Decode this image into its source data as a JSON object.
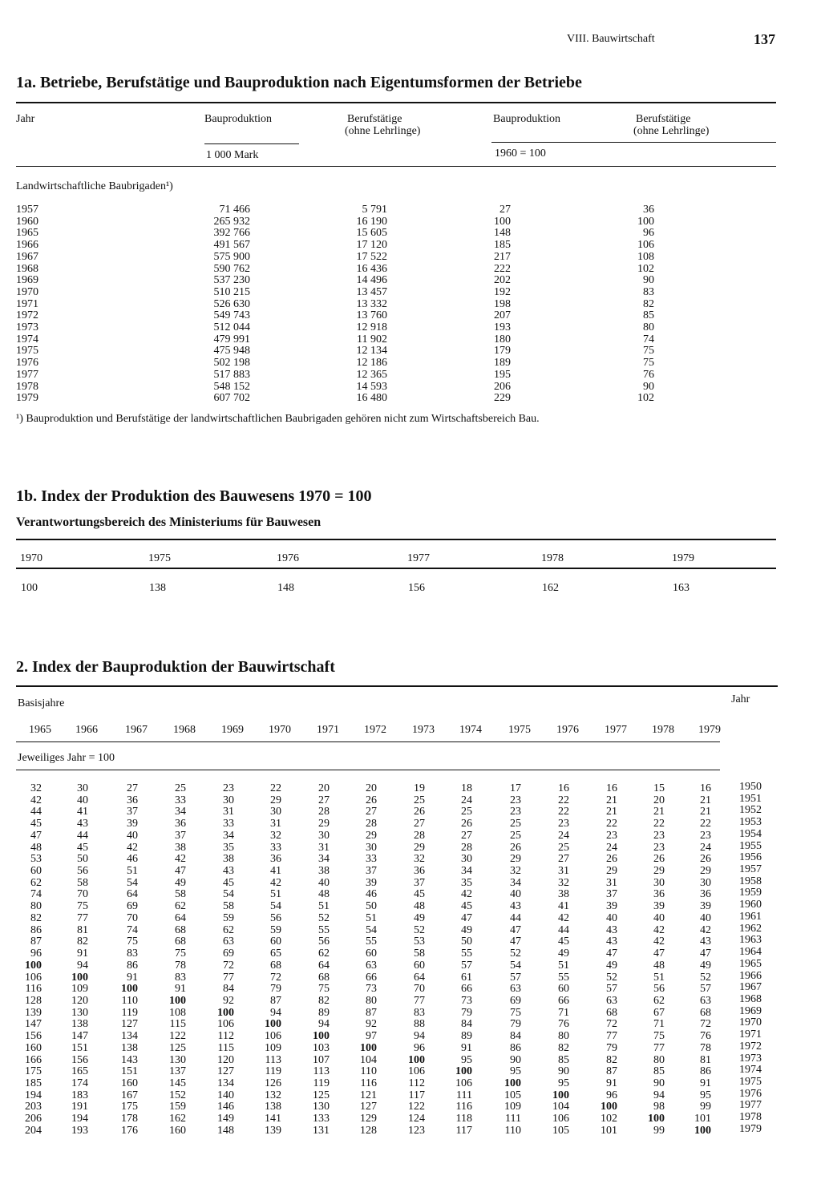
{
  "header": {
    "section": "VIII. Bauwirtschaft",
    "page": "137"
  },
  "table_1a": {
    "title": "1a. Betriebe, Berufstätige und Bauproduktion nach Eigentumsformen der Betriebe",
    "columns": [
      [
        "Jahr"
      ],
      [
        "Bauproduktion"
      ],
      [
        "Berufstätige",
        "(ohne Lehrlinge)"
      ],
      [
        "Bauproduktion"
      ],
      [
        "Berufstätige",
        "(ohne Lehrlinge)"
      ]
    ],
    "units": [
      "1 000 Mark",
      "1960 = 100"
    ],
    "group": "Landwirtschaftliche Baubrigaden¹)",
    "rows": [
      [
        "1957",
        "71 466",
        "5 791",
        "27",
        "36"
      ],
      [
        "1960",
        "265 932",
        "16 190",
        "100",
        "100"
      ],
      [
        "1965",
        "392 766",
        "15 605",
        "148",
        "96"
      ],
      [
        "1966",
        "491 567",
        "17 120",
        "185",
        "106"
      ],
      [
        "1967",
        "575 900",
        "17 522",
        "217",
        "108"
      ],
      [
        "1968",
        "590 762",
        "16 436",
        "222",
        "102"
      ],
      [
        "1969",
        "537 230",
        "14 496",
        "202",
        "90"
      ],
      [
        "1970",
        "510 215",
        "13 457",
        "192",
        "83"
      ],
      [
        "1971",
        "526 630",
        "13 332",
        "198",
        "82"
      ],
      [
        "1972",
        "549 743",
        "13 760",
        "207",
        "85"
      ],
      [
        "1973",
        "512 044",
        "12 918",
        "193",
        "80"
      ],
      [
        "1974",
        "479 991",
        "11 902",
        "180",
        "74"
      ],
      [
        "1975",
        "475 948",
        "12 134",
        "179",
        "75"
      ],
      [
        "1976",
        "502 198",
        "12 186",
        "189",
        "75"
      ],
      [
        "1977",
        "517 883",
        "12 365",
        "195",
        "76"
      ],
      [
        "1978",
        "548 152",
        "14 593",
        "206",
        "90"
      ],
      [
        "1979",
        "607 702",
        "16 480",
        "229",
        "102"
      ]
    ],
    "footnote": "¹) Bauproduktion und Berufstätige der landwirtschaftlichen Baubrigaden gehören nicht zum Wirtschaftsbereich Bau."
  },
  "table_1b": {
    "title": "1b. Index der Produktion des Bauwesens 1970 = 100",
    "subtitle": "Verantwortungsbereich des Ministeriums für Bauwesen",
    "years": [
      "1970",
      "1975",
      "1976",
      "1977",
      "1978",
      "1979"
    ],
    "values": [
      100,
      138,
      148,
      156,
      162,
      163
    ]
  },
  "table_2": {
    "title": "2. Index der Bauproduktion der Bauwirtschaft",
    "base_label": "Basisjahre",
    "year_label": "Jahr",
    "base_years": [
      "1965",
      "1966",
      "1967",
      "1968",
      "1969",
      "1970",
      "1971",
      "1972",
      "1973",
      "1974",
      "1975",
      "1976",
      "1977",
      "1978",
      "1979"
    ],
    "unit": "Jeweiliges Jahr = 100",
    "rows": [
      {
        "year": "1950",
        "values": [
          32,
          30,
          27,
          25,
          23,
          22,
          20,
          20,
          19,
          18,
          17,
          16,
          16,
          15,
          16
        ]
      },
      {
        "year": "1951",
        "values": [
          42,
          40,
          36,
          33,
          30,
          29,
          27,
          26,
          25,
          24,
          23,
          22,
          21,
          20,
          21
        ]
      },
      {
        "year": "1952",
        "values": [
          44,
          41,
          37,
          34,
          31,
          30,
          28,
          27,
          26,
          25,
          23,
          22,
          21,
          21,
          21
        ]
      },
      {
        "year": "1953",
        "values": [
          45,
          43,
          39,
          36,
          33,
          31,
          29,
          28,
          27,
          26,
          25,
          23,
          22,
          22,
          22
        ]
      },
      {
        "year": "1954",
        "values": [
          47,
          44,
          40,
          37,
          34,
          32,
          30,
          29,
          28,
          27,
          25,
          24,
          23,
          23,
          23
        ]
      },
      {
        "year": "1955",
        "values": [
          48,
          45,
          42,
          38,
          35,
          33,
          31,
          30,
          29,
          28,
          26,
          25,
          24,
          23,
          24
        ]
      },
      {
        "year": "1956",
        "values": [
          53,
          50,
          46,
          42,
          38,
          36,
          34,
          33,
          32,
          30,
          29,
          27,
          26,
          26,
          26
        ]
      },
      {
        "year": "1957",
        "values": [
          60,
          56,
          51,
          47,
          43,
          41,
          38,
          37,
          36,
          34,
          32,
          31,
          29,
          29,
          29
        ]
      },
      {
        "year": "1958",
        "values": [
          62,
          58,
          54,
          49,
          45,
          42,
          40,
          39,
          37,
          35,
          34,
          32,
          31,
          30,
          30
        ]
      },
      {
        "year": "1959",
        "values": [
          74,
          70,
          64,
          58,
          54,
          51,
          48,
          46,
          45,
          42,
          40,
          38,
          37,
          36,
          36
        ]
      },
      {
        "year": "1960",
        "values": [
          80,
          75,
          69,
          62,
          58,
          54,
          51,
          50,
          48,
          45,
          43,
          41,
          39,
          39,
          39
        ]
      },
      {
        "year": "1961",
        "values": [
          82,
          77,
          70,
          64,
          59,
          56,
          52,
          51,
          49,
          47,
          44,
          42,
          40,
          40,
          40
        ]
      },
      {
        "year": "1962",
        "values": [
          86,
          81,
          74,
          68,
          62,
          59,
          55,
          54,
          52,
          49,
          47,
          44,
          43,
          42,
          42
        ]
      },
      {
        "year": "1963",
        "values": [
          87,
          82,
          75,
          68,
          63,
          60,
          56,
          55,
          53,
          50,
          47,
          45,
          43,
          42,
          43
        ]
      },
      {
        "year": "1964",
        "values": [
          96,
          91,
          83,
          75,
          69,
          65,
          62,
          60,
          58,
          55,
          52,
          49,
          47,
          47,
          47
        ]
      },
      {
        "year": "1965",
        "values": [
          100,
          94,
          86,
          78,
          72,
          68,
          64,
          63,
          60,
          57,
          54,
          51,
          49,
          48,
          49
        ]
      },
      {
        "year": "1966",
        "values": [
          106,
          100,
          91,
          83,
          77,
          72,
          68,
          66,
          64,
          61,
          57,
          55,
          52,
          51,
          52
        ]
      },
      {
        "year": "1967",
        "values": [
          116,
          109,
          100,
          91,
          84,
          79,
          75,
          73,
          70,
          66,
          63,
          60,
          57,
          56,
          57
        ]
      },
      {
        "year": "1968",
        "values": [
          128,
          120,
          110,
          100,
          92,
          87,
          82,
          80,
          77,
          73,
          69,
          66,
          63,
          62,
          63
        ]
      },
      {
        "year": "1969",
        "values": [
          139,
          130,
          119,
          108,
          100,
          94,
          89,
          87,
          83,
          79,
          75,
          71,
          68,
          67,
          68
        ]
      },
      {
        "year": "1970",
        "values": [
          147,
          138,
          127,
          115,
          106,
          100,
          94,
          92,
          88,
          84,
          79,
          76,
          72,
          71,
          72
        ]
      },
      {
        "year": "1971",
        "values": [
          156,
          147,
          134,
          122,
          112,
          106,
          100,
          97,
          94,
          89,
          84,
          80,
          77,
          75,
          76
        ]
      },
      {
        "year": "1972",
        "values": [
          160,
          151,
          138,
          125,
          115,
          109,
          103,
          100,
          96,
          91,
          86,
          82,
          79,
          77,
          78
        ]
      },
      {
        "year": "1973",
        "values": [
          166,
          156,
          143,
          130,
          120,
          113,
          107,
          104,
          100,
          95,
          90,
          85,
          82,
          80,
          81
        ]
      },
      {
        "year": "1974",
        "values": [
          175,
          165,
          151,
          137,
          127,
          119,
          113,
          110,
          106,
          100,
          95,
          90,
          87,
          85,
          86
        ]
      },
      {
        "year": "1975",
        "values": [
          185,
          174,
          160,
          145,
          134,
          126,
          119,
          116,
          112,
          106,
          100,
          95,
          91,
          90,
          91
        ]
      },
      {
        "year": "1976",
        "values": [
          194,
          183,
          167,
          152,
          140,
          132,
          125,
          121,
          117,
          111,
          105,
          100,
          96,
          94,
          95
        ]
      },
      {
        "year": "1977",
        "values": [
          203,
          191,
          175,
          159,
          146,
          138,
          130,
          127,
          122,
          116,
          109,
          104,
          100,
          98,
          99
        ]
      },
      {
        "year": "1978",
        "values": [
          206,
          194,
          178,
          162,
          149,
          141,
          133,
          129,
          124,
          118,
          111,
          106,
          102,
          100,
          101
        ]
      },
      {
        "year": "1979",
        "values": [
          204,
          193,
          176,
          160,
          148,
          139,
          131,
          128,
          123,
          117,
          110,
          105,
          101,
          99,
          100
        ]
      }
    ]
  }
}
